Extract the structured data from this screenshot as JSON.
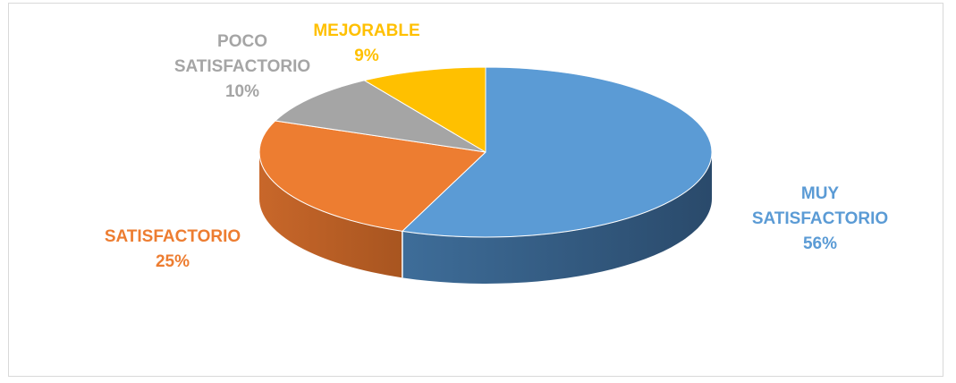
{
  "chart_data": {
    "type": "pie",
    "style": "3d",
    "title": "",
    "slices": [
      {
        "label": "MUY SATISFACTORIO",
        "value": 56,
        "display": "56%",
        "color": "#5B9BD5",
        "side_color": "#41719C",
        "label_lines": [
          "MUY",
          "SATISFACTORIO",
          "56%"
        ]
      },
      {
        "label": "SATISFACTORIO",
        "value": 25,
        "display": "25%",
        "color": "#ED7D31",
        "side_color": "#AE5A21",
        "label_lines": [
          "SATISFACTORIO",
          "25%"
        ]
      },
      {
        "label": "POCO SATISFACTORIO",
        "value": 10,
        "display": "10%",
        "color": "#A5A5A5",
        "side_color": "#7C7C7C",
        "label_lines": [
          "POCO",
          "SATISFACTORIO",
          "10%"
        ]
      },
      {
        "label": "MEJORABLE",
        "value": 9,
        "display": "9%",
        "color": "#FFC000",
        "side_color": "#BF9000",
        "label_lines": [
          "MEJORABLE",
          "9%"
        ]
      }
    ],
    "legend": "none"
  }
}
